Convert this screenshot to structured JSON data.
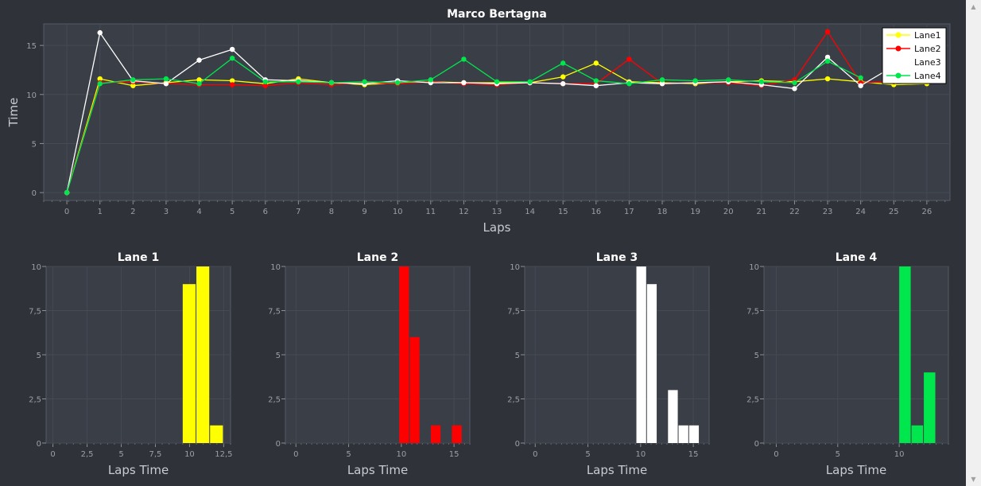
{
  "chart_data": [
    {
      "type": "line",
      "title": "Marco Bertagna",
      "xlabel": "Laps",
      "ylabel": "Time",
      "xlim": [
        -0.7,
        26.7
      ],
      "ylim": [
        -0.8,
        17.2
      ],
      "xticks": [
        0,
        1,
        2,
        3,
        4,
        5,
        6,
        7,
        8,
        9,
        10,
        11,
        12,
        13,
        14,
        15,
        16,
        17,
        18,
        19,
        20,
        21,
        22,
        23,
        24,
        25,
        26
      ],
      "yticks": [
        0,
        5,
        10,
        15
      ],
      "grid": true,
      "legend": "top-right",
      "x": [
        0,
        1,
        2,
        3,
        4,
        5,
        6,
        7,
        8,
        9,
        10,
        11,
        12,
        13,
        14,
        15,
        16,
        17,
        18,
        19,
        20,
        21,
        22,
        23,
        24,
        25,
        26
      ],
      "series": [
        {
          "name": "Lane1",
          "color": "#ffff00",
          "values": [
            0,
            11.6,
            10.9,
            11.2,
            11.5,
            11.4,
            11.1,
            11.6,
            11.2,
            11.0,
            11.2,
            11.3,
            11.2,
            11.2,
            11.2,
            11.8,
            13.2,
            11.3,
            11.2,
            11.1,
            11.3,
            11.4,
            11.3,
            11.6,
            11.3,
            11.0,
            11.1
          ]
        },
        {
          "name": "Lane2",
          "color": "#ff0000",
          "values": [
            0,
            11.2,
            11.3,
            11.1,
            11.0,
            11.0,
            10.9,
            11.2,
            11.0,
            11.2,
            11.1,
            11.3,
            11.1,
            11.0,
            11.2,
            11.1,
            11.1,
            13.6,
            11.1,
            11.2,
            11.2,
            10.9,
            11.5,
            16.4,
            11.2,
            11.3,
            11.4
          ]
        },
        {
          "name": "Lane3",
          "color": "#ffffff",
          "values": [
            0,
            16.3,
            11.4,
            11.1,
            13.5,
            14.6,
            11.5,
            11.4,
            11.2,
            11.1,
            11.4,
            11.2,
            11.2,
            11.1,
            11.2,
            11.1,
            10.9,
            11.2,
            11.1,
            11.2,
            11.3,
            11.0,
            10.6,
            13.8,
            10.9,
            12.9,
            null
          ]
        },
        {
          "name": "Lane4",
          "color": "#00e64d",
          "values": [
            0,
            11.1,
            11.5,
            11.6,
            11.1,
            13.7,
            11.3,
            11.3,
            11.2,
            11.3,
            11.2,
            11.5,
            13.6,
            11.3,
            11.3,
            13.2,
            11.4,
            11.1,
            11.5,
            11.4,
            11.5,
            11.3,
            11.2,
            13.4,
            11.7,
            null,
            null
          ]
        }
      ]
    },
    {
      "type": "bar",
      "title": "Lane 1",
      "xlabel": "Laps Time",
      "ylabel": "",
      "color": "#ffff00",
      "xlim": [
        -0.5,
        13
      ],
      "ylim": [
        0,
        10
      ],
      "xticks": [
        0,
        2.5,
        5,
        7.5,
        10,
        12.5
      ],
      "xtick_labels": [
        "0",
        "2,5",
        "5",
        "7,5",
        "10",
        "12,5"
      ],
      "yticks": [
        0,
        2.5,
        5,
        7.5,
        10
      ],
      "ytick_labels": [
        "0",
        "2,5",
        "5",
        "7,5",
        "10"
      ],
      "bins": [
        [
          9.5,
          10.5,
          9
        ],
        [
          10.5,
          11.5,
          10
        ],
        [
          11.5,
          12.5,
          1
        ]
      ]
    },
    {
      "type": "bar",
      "title": "Lane 2",
      "xlabel": "Laps Time",
      "ylabel": "",
      "color": "#ff0000",
      "xlim": [
        -1,
        16.5
      ],
      "ylim": [
        0,
        10
      ],
      "xticks": [
        0,
        5,
        10,
        15
      ],
      "xtick_labels": [
        "0",
        "5",
        "10",
        "15"
      ],
      "yticks": [
        0,
        2.5,
        5,
        7.5,
        10
      ],
      "ytick_labels": [
        "0",
        "2,5",
        "5",
        "7,5",
        "10"
      ],
      "bins": [
        [
          9.8,
          10.8,
          10
        ],
        [
          10.8,
          11.8,
          6
        ],
        [
          12.8,
          13.8,
          1
        ],
        [
          14.8,
          15.8,
          1
        ]
      ]
    },
    {
      "type": "bar",
      "title": "Lane 3",
      "xlabel": "Laps Time",
      "ylabel": "",
      "color": "#ffffff",
      "xlim": [
        -1,
        16.5
      ],
      "ylim": [
        0,
        10
      ],
      "xticks": [
        0,
        5,
        10,
        15
      ],
      "xtick_labels": [
        "0",
        "5",
        "10",
        "15"
      ],
      "yticks": [
        0,
        2.5,
        5,
        7.5,
        10
      ],
      "ytick_labels": [
        "0",
        "2,5",
        "5",
        "7,5",
        "10"
      ],
      "bins": [
        [
          9.6,
          10.6,
          10
        ],
        [
          10.6,
          11.6,
          9
        ],
        [
          12.6,
          13.6,
          3
        ],
        [
          13.6,
          14.6,
          1
        ],
        [
          14.6,
          15.6,
          1
        ]
      ]
    },
    {
      "type": "bar",
      "title": "Lane 4",
      "xlabel": "Laps Time",
      "ylabel": "",
      "color": "#00e64d",
      "xlim": [
        -1,
        14
      ],
      "ylim": [
        0,
        10
      ],
      "xticks": [
        0,
        5,
        10
      ],
      "xtick_labels": [
        "0",
        "5",
        "10"
      ],
      "yticks": [
        0,
        2.5,
        5,
        7.5,
        10
      ],
      "ytick_labels": [
        "0",
        "2,5",
        "5",
        "7,5",
        "10"
      ],
      "bins": [
        [
          10,
          11,
          10
        ],
        [
          11,
          12,
          1
        ],
        [
          12,
          13,
          4
        ]
      ]
    }
  ],
  "scrollbar": {
    "up_icon": "▲",
    "down_icon": "▼"
  }
}
